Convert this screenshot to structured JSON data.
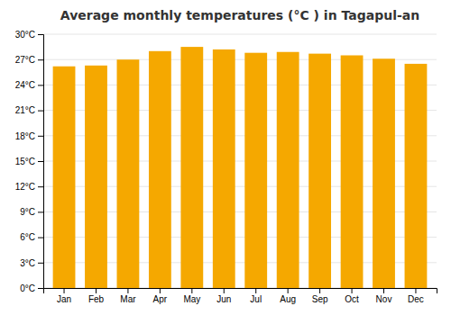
{
  "chart_data": {
    "type": "bar",
    "title": "Average monthly temperatures (°C ) in Tagapul-an",
    "categories": [
      "Jan",
      "Feb",
      "Mar",
      "Apr",
      "May",
      "Jun",
      "Jul",
      "Aug",
      "Sep",
      "Oct",
      "Nov",
      "Dec"
    ],
    "values": [
      26.2,
      26.3,
      27.0,
      28.0,
      28.5,
      28.2,
      27.8,
      27.9,
      27.7,
      27.5,
      27.1,
      26.5
    ],
    "color": "#F5A800",
    "ylim": [
      0,
      30
    ],
    "yticks": [
      {
        "value": 0,
        "label": "0°C"
      },
      {
        "value": 3,
        "label": "3°C"
      },
      {
        "value": 6,
        "label": "6°C"
      },
      {
        "value": 9,
        "label": "9°C"
      },
      {
        "value": 12,
        "label": "12°C"
      },
      {
        "value": 15,
        "label": "15°C"
      },
      {
        "value": 18,
        "label": "18°C"
      },
      {
        "value": 21,
        "label": "21°C"
      },
      {
        "value": 24,
        "label": "24°C"
      },
      {
        "value": 27,
        "label": "27°C"
      },
      {
        "value": 30,
        "label": "30°C"
      }
    ],
    "grid": true
  }
}
